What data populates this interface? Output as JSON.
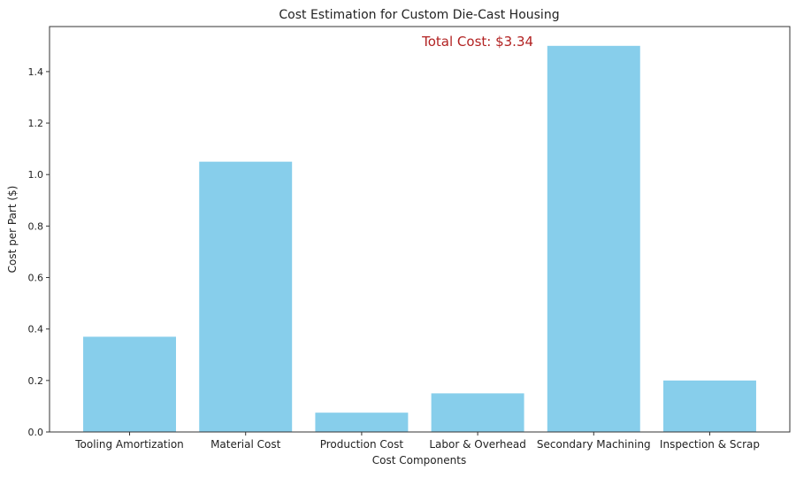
{
  "chart_data": {
    "type": "bar",
    "title": "Cost Estimation for Custom Die-Cast Housing",
    "xlabel": "Cost Components",
    "ylabel": "Cost per Part ($)",
    "categories": [
      "Tooling Amortization",
      "Material Cost",
      "Production Cost",
      "Labor & Overhead",
      "Secondary Machining",
      "Inspection & Scrap"
    ],
    "values": [
      0.37,
      1.05,
      0.075,
      0.15,
      1.5,
      0.2
    ],
    "ylim": [
      0,
      1.575
    ],
    "yticks": [
      0.0,
      0.2,
      0.4,
      0.6,
      0.8,
      1.0,
      1.2,
      1.4
    ],
    "grid": false,
    "bar_color": "#87ceeb",
    "annotation": {
      "text": "Total Cost: $3.34",
      "x": 3,
      "y": 1.5,
      "color": "#b22222"
    }
  }
}
